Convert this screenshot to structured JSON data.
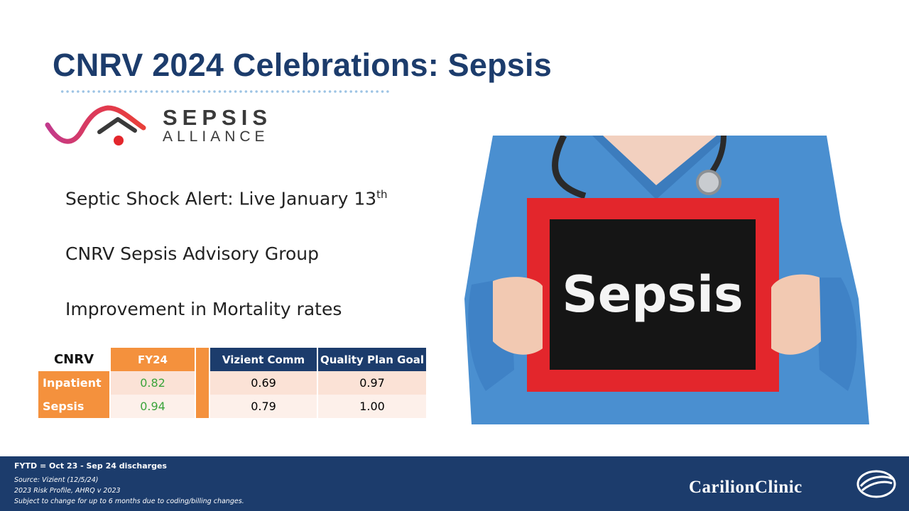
{
  "slide": {
    "title": "CNRV 2024 Celebrations: Sepsis"
  },
  "logo": {
    "word1": "SEPSIS",
    "word2": "ALLIANCE"
  },
  "bullets": [
    {
      "text": "Septic Shock Alert: Live January 13",
      "sup": "th"
    },
    {
      "text": "CNRV Sepsis Advisory Group"
    },
    {
      "text": "Improvement in Mortality rates"
    }
  ],
  "table": {
    "corner": "CNRV",
    "headers": [
      "FY24",
      "Vizient Comm",
      "Quality Plan Goal"
    ],
    "rows": [
      {
        "label": "Inpatient",
        "fy24": "0.82",
        "vizient": "0.69",
        "goal": "0.97"
      },
      {
        "label": "Sepsis",
        "fy24": "0.94",
        "vizient": "0.79",
        "goal": "1.00"
      }
    ]
  },
  "photo": {
    "sign_text": "Sepsis"
  },
  "footer": {
    "main": "FYTD = Oct 23 - Sep 24 discharges",
    "lines": [
      "Source: Vizient (12/5/24)",
      "2023 Risk Profile, AHRQ v 2023",
      "Subject to change for up to 6 months due to coding/billing changes."
    ],
    "brand": "CarilionClinic"
  },
  "colors": {
    "navy": "#1c3c6c",
    "orange": "#f4913d",
    "green": "#3aa33a",
    "sign_red": "#e3262c"
  }
}
